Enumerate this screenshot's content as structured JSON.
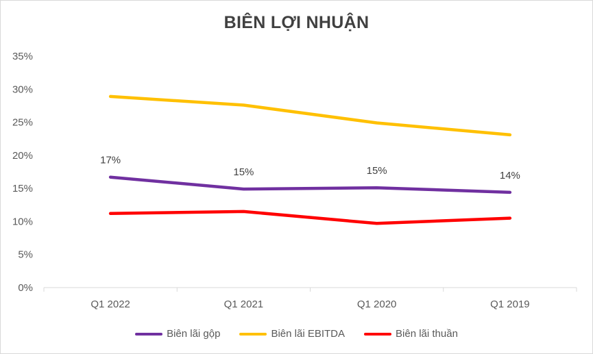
{
  "chart_data": {
    "type": "line",
    "title": "BIÊN LỢI NHUẬN",
    "categories": [
      "Q1 2022",
      "Q1 2021",
      "Q1 2020",
      "Q1 2019"
    ],
    "ylim": [
      0,
      35
    ],
    "yticks": [
      "0%",
      "5%",
      "10%",
      "15%",
      "20%",
      "25%",
      "30%",
      "35%"
    ],
    "grid": false,
    "legend_position": "bottom",
    "series": [
      {
        "name": "Biên lãi gộp",
        "color": "#7030A0",
        "values": [
          16.7,
          14.9,
          15.1,
          14.4
        ],
        "labels": [
          "17%",
          "15%",
          "15%",
          "14%"
        ]
      },
      {
        "name": "Biên lãi EBITDA",
        "color": "#FFC000",
        "values": [
          28.9,
          27.6,
          24.9,
          23.1
        ]
      },
      {
        "name": "Biên lãi thuần",
        "color": "#FF0000",
        "values": [
          11.2,
          11.5,
          9.7,
          10.5
        ]
      }
    ]
  }
}
